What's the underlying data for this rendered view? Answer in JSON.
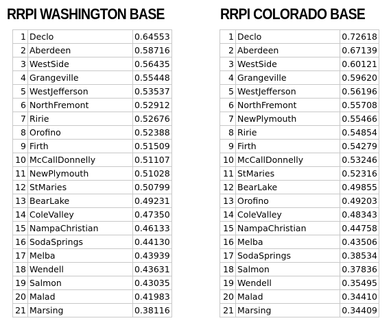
{
  "washington": {
    "title": "RRPI WASHINGTON BASE",
    "rows": [
      [
        1,
        "Declo",
        "0.64553"
      ],
      [
        2,
        "Aberdeen",
        "0.58716"
      ],
      [
        3,
        "WestSide",
        "0.56435"
      ],
      [
        4,
        "Grangeville",
        "0.55448"
      ],
      [
        5,
        "WestJefferson",
        "0.53537"
      ],
      [
        6,
        "NorthFremont",
        "0.52912"
      ],
      [
        7,
        "Ririe",
        "0.52676"
      ],
      [
        8,
        "Orofino",
        "0.52388"
      ],
      [
        9,
        "Firth",
        "0.51509"
      ],
      [
        10,
        "McCallDonnelly",
        "0.51107"
      ],
      [
        11,
        "NewPlymouth",
        "0.51028"
      ],
      [
        12,
        "StMaries",
        "0.50799"
      ],
      [
        13,
        "BearLake",
        "0.49231"
      ],
      [
        14,
        "ColeValley",
        "0.47350"
      ],
      [
        15,
        "NampaChristian",
        "0.46133"
      ],
      [
        16,
        "SodaSprings",
        "0.44130"
      ],
      [
        17,
        "Melba",
        "0.43939"
      ],
      [
        18,
        "Wendell",
        "0.43631"
      ],
      [
        19,
        "Salmon",
        "0.43035"
      ],
      [
        20,
        "Malad",
        "0.41983"
      ],
      [
        21,
        "Marsing",
        "0.38116"
      ]
    ]
  },
  "colorado": {
    "title": "RRPI COLORADO BASE",
    "rows": [
      [
        1,
        "Declo",
        "0.72618"
      ],
      [
        2,
        "Aberdeen",
        "0.67139"
      ],
      [
        3,
        "WestSide",
        "0.60121"
      ],
      [
        4,
        "Grangeville",
        "0.59620"
      ],
      [
        5,
        "WestJefferson",
        "0.56196"
      ],
      [
        6,
        "NorthFremont",
        "0.55708"
      ],
      [
        7,
        "NewPlymouth",
        "0.55466"
      ],
      [
        8,
        "Ririe",
        "0.54854"
      ],
      [
        9,
        "Firth",
        "0.54279"
      ],
      [
        10,
        "McCallDonnelly",
        "0.53246"
      ],
      [
        11,
        "StMaries",
        "0.52316"
      ],
      [
        12,
        "BearLake",
        "0.49855"
      ],
      [
        13,
        "Orofino",
        "0.49203"
      ],
      [
        14,
        "ColeValley",
        "0.48343"
      ],
      [
        15,
        "NampaChristian",
        "0.44758"
      ],
      [
        16,
        "Melba",
        "0.43506"
      ],
      [
        17,
        "SodaSprings",
        "0.38534"
      ],
      [
        18,
        "Salmon",
        "0.37836"
      ],
      [
        19,
        "Wendell",
        "0.35495"
      ],
      [
        20,
        "Malad",
        "0.34410"
      ],
      [
        21,
        "Marsing",
        "0.34409"
      ]
    ]
  }
}
